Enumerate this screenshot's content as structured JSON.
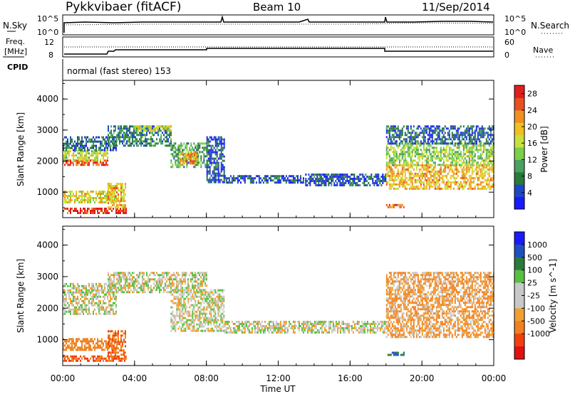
{
  "header": {
    "radar": "Pykkvibaer (fitACF)",
    "beam": "Beam 10",
    "date": "11/Sep/2014"
  },
  "top_panels": {
    "nsky_label": "N.Sky",
    "nsearch_label": "N.Search",
    "nsky_ticks": [
      "10^5",
      "10^0"
    ],
    "nsearch_ticks": [
      "10^5",
      "10^0"
    ],
    "freq_label_1": "Freq.",
    "freq_label_2": "[MHz]",
    "freq_ticks": [
      "12",
      "8"
    ],
    "nave_label": "Nave",
    "nave_ticks": [
      "60",
      "0"
    ],
    "cpid_label": "CPID",
    "cpid_text": "normal (fast stereo) 153"
  },
  "colors": {
    "power_scale": [
      "#1a1aff",
      "#1e46c8",
      "#2a7a3a",
      "#4aa060",
      "#7ad04a",
      "#c8e03c",
      "#f0c020",
      "#f09020",
      "#e85020",
      "#e01e1e"
    ],
    "velocity_scale": [
      "#1a1aff",
      "#2050c0",
      "#2a7a3a",
      "#58c040",
      "#c8c8c8",
      "#c8c8c8",
      "#f0a030",
      "#f08020",
      "#f04010",
      "#e01010"
    ],
    "grey": "#c8c8c8"
  },
  "chart_data": [
    {
      "type": "heatmap",
      "title": "Power",
      "xlabel": "Time UT",
      "ylabel": "Slant Range [km]",
      "xlim": [
        0,
        24
      ],
      "ylim": [
        180,
        4600
      ],
      "yticks": [
        "1000",
        "2000",
        "3000",
        "4000"
      ],
      "xticks": [
        "00:00",
        "04:00",
        "08:00",
        "12:00",
        "16:00",
        "20:00",
        "00:00"
      ],
      "colorbar_label": "Power [dB]",
      "colorbar_ticks": [
        "4",
        "8",
        "12",
        "16",
        "20",
        "24",
        "28"
      ],
      "colorbar_range": [
        0,
        30
      ],
      "regions": [
        {
          "t0": 0.0,
          "t1": 2.5,
          "r0": 1850,
          "r1": 2050,
          "level": 26
        },
        {
          "t0": 0.0,
          "t1": 2.5,
          "r0": 2050,
          "r1": 2350,
          "level": 16
        },
        {
          "t0": 0.0,
          "t1": 3.0,
          "r0": 2350,
          "r1": 2800,
          "level": 6
        },
        {
          "t0": 2.5,
          "t1": 6.0,
          "r0": 2500,
          "r1": 3150,
          "level": 8
        },
        {
          "t0": 4.0,
          "t1": 6.0,
          "r0": 2950,
          "r1": 3150,
          "level": 16
        },
        {
          "t0": 6.0,
          "t1": 8.0,
          "r0": 1800,
          "r1": 2600,
          "level": 10
        },
        {
          "t0": 6.5,
          "t1": 7.5,
          "r0": 1900,
          "r1": 2300,
          "level": 22
        },
        {
          "t0": 8.0,
          "t1": 9.0,
          "r0": 1300,
          "r1": 2800,
          "level": 5
        },
        {
          "t0": 0.0,
          "t1": 3.0,
          "r0": 700,
          "r1": 1050,
          "level": 18
        },
        {
          "t0": 0.0,
          "t1": 3.5,
          "r0": 300,
          "r1": 500,
          "level": 28
        },
        {
          "t0": 2.5,
          "t1": 3.5,
          "r0": 500,
          "r1": 1300,
          "level": 20
        },
        {
          "t0": 9.0,
          "t1": 13.5,
          "r0": 1300,
          "r1": 1550,
          "level": 5
        },
        {
          "t0": 13.5,
          "t1": 18.0,
          "r0": 1250,
          "r1": 1600,
          "level": 5
        },
        {
          "t0": 18.0,
          "t1": 24.0,
          "r0": 1100,
          "r1": 1900,
          "level": 20
        },
        {
          "t0": 18.0,
          "t1": 24.0,
          "r0": 1900,
          "r1": 2600,
          "level": 14
        },
        {
          "t0": 18.0,
          "t1": 24.0,
          "r0": 2600,
          "r1": 3150,
          "level": 6
        },
        {
          "t0": 18.0,
          "t1": 19.0,
          "r0": 500,
          "r1": 620,
          "level": 24
        }
      ]
    },
    {
      "type": "heatmap",
      "title": "Velocity",
      "xlabel": "Time UT",
      "ylabel": "Slant Range [km]",
      "xlim": [
        0,
        24
      ],
      "ylim": [
        180,
        4600
      ],
      "yticks": [
        "1000",
        "2000",
        "3000",
        "4000"
      ],
      "xticks": [
        "00:00",
        "04:00",
        "08:00",
        "12:00",
        "16:00",
        "20:00",
        "00:00"
      ],
      "colorbar_label": "Velocity [m s^-1]",
      "colorbar_ticks": [
        "1000",
        "500",
        "100",
        "25",
        "-25",
        "-100",
        "-500",
        "-1000"
      ],
      "regions": [
        {
          "t0": 0.0,
          "t1": 3.0,
          "r0": 1850,
          "r1": 2800,
          "v": 0
        },
        {
          "t0": 2.5,
          "t1": 8.0,
          "r0": 2500,
          "r1": 3150,
          "v": 0
        },
        {
          "t0": 6.0,
          "t1": 9.0,
          "r0": 1300,
          "r1": 2600,
          "v": 0
        },
        {
          "t0": 0.0,
          "t1": 3.0,
          "r0": 700,
          "r1": 1050,
          "v": -100
        },
        {
          "t0": 0.0,
          "t1": 3.5,
          "r0": 300,
          "r1": 500,
          "v": -300
        },
        {
          "t0": 2.5,
          "t1": 3.5,
          "r0": 500,
          "r1": 1300,
          "v": -300
        },
        {
          "t0": 9.0,
          "t1": 18.0,
          "r0": 1250,
          "r1": 1600,
          "v": 0
        },
        {
          "t0": 18.0,
          "t1": 24.0,
          "r0": 1100,
          "r1": 3150,
          "v": -60
        },
        {
          "t0": 18.0,
          "t1": 19.0,
          "r0": 500,
          "r1": 620,
          "v": 300
        }
      ]
    }
  ]
}
